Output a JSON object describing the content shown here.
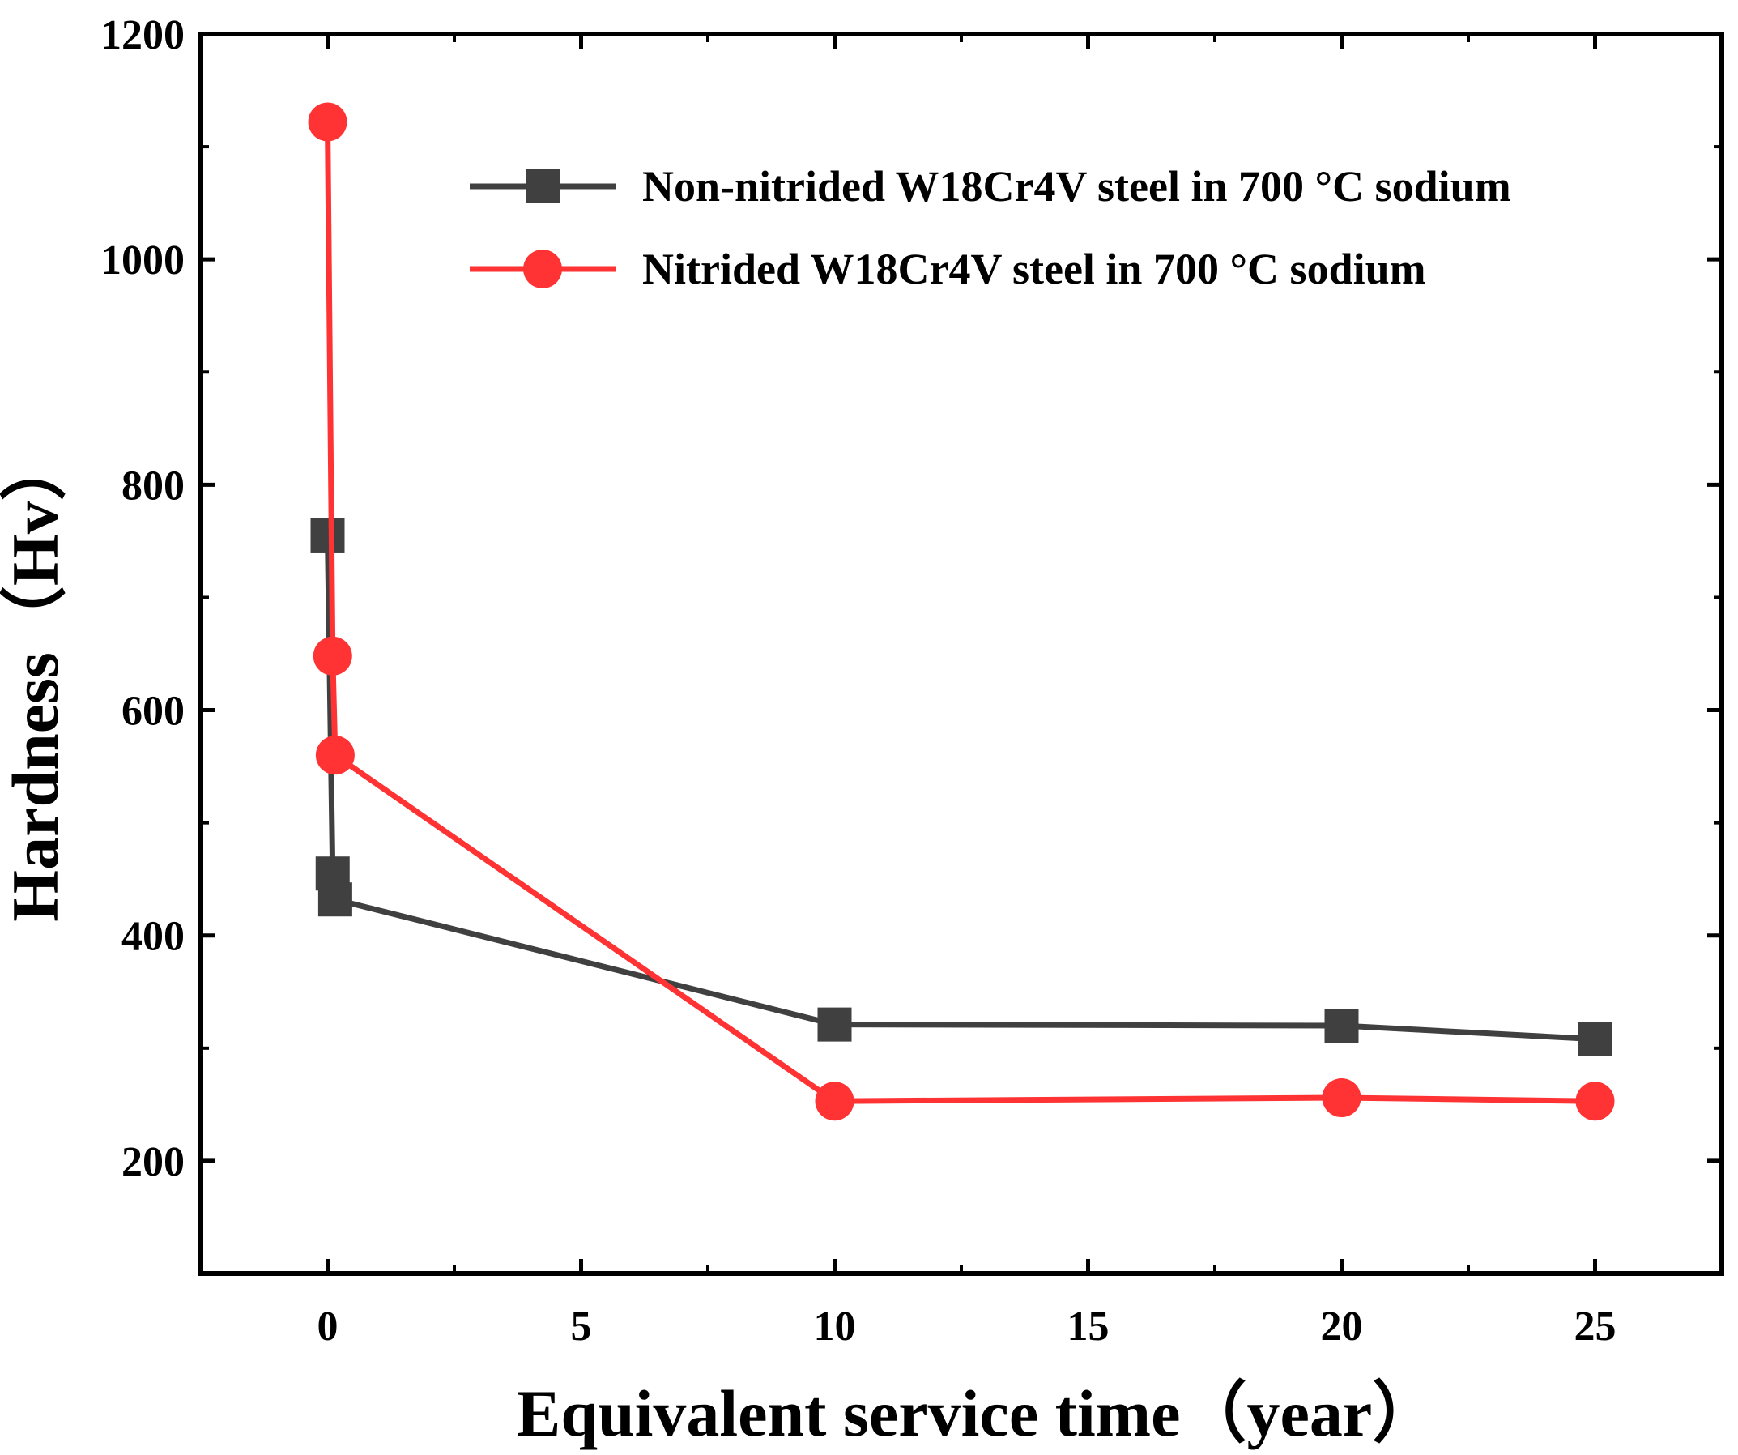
{
  "chart_data": {
    "type": "line",
    "title": "",
    "xlabel": "Equivalent service time（year）",
    "ylabel": "Hardness（Hv）",
    "xlim": [
      -2.5,
      27.5
    ],
    "ylim": [
      100,
      1200
    ],
    "xticks": [
      0,
      5,
      10,
      15,
      20,
      25
    ],
    "xtick_labels": [
      "0",
      "5",
      "10",
      "15",
      "20",
      "25"
    ],
    "yticks": [
      200,
      400,
      600,
      800,
      1000,
      1200
    ],
    "ytick_labels": [
      "200",
      "400",
      "600",
      "800",
      "1000",
      "1200"
    ],
    "legend_position": "top-right",
    "grid": false,
    "series": [
      {
        "name": "Non-nitrided W18Cr4V steel in 700 °C sodium",
        "color": "#404040",
        "marker": "square",
        "x": [
          0,
          0.1,
          0.15,
          10,
          20,
          25
        ],
        "y": [
          755,
          455,
          432,
          321,
          320,
          308
        ]
      },
      {
        "name": "Nitrided W18Cr4V steel in 700 °C sodium",
        "color": "#ff3333",
        "marker": "circle",
        "x": [
          0,
          0.1,
          0.15,
          10,
          20,
          25
        ],
        "y": [
          1122,
          648,
          560,
          253,
          256,
          253
        ]
      }
    ]
  }
}
